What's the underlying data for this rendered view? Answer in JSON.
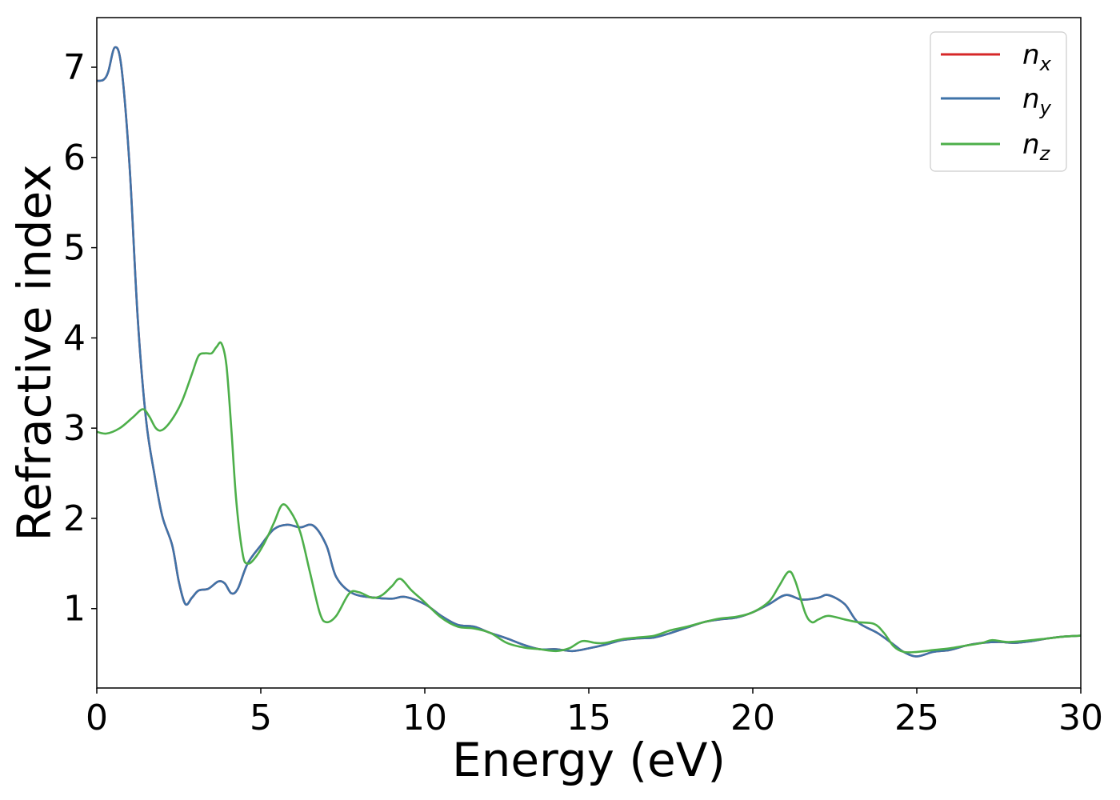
{
  "chart_data": {
    "type": "line",
    "xlabel": "Energy (eV)",
    "ylabel": "Refractive index",
    "xlim": [
      0,
      30
    ],
    "ylim": [
      0.12,
      7.55
    ],
    "x_ticks": [
      0,
      5,
      10,
      15,
      20,
      25,
      30
    ],
    "y_ticks": [
      1,
      2,
      3,
      4,
      5,
      6,
      7
    ],
    "grid": false,
    "legend_position": "top-right",
    "series": [
      {
        "name": "n_x",
        "legend_main": "n",
        "legend_sub": "x",
        "color": "#d62728",
        "points": [
          [
            0,
            6.85
          ],
          [
            0.2,
            6.86
          ],
          [
            0.35,
            6.95
          ],
          [
            0.55,
            7.22
          ],
          [
            0.75,
            7.0
          ],
          [
            1.0,
            5.9
          ],
          [
            1.25,
            4.2
          ],
          [
            1.5,
            3.1
          ],
          [
            1.75,
            2.5
          ],
          [
            2.0,
            2.02
          ],
          [
            2.3,
            1.7
          ],
          [
            2.5,
            1.3
          ],
          [
            2.7,
            1.05
          ],
          [
            2.9,
            1.12
          ],
          [
            3.1,
            1.2
          ],
          [
            3.4,
            1.22
          ],
          [
            3.7,
            1.3
          ],
          [
            3.9,
            1.28
          ],
          [
            4.1,
            1.17
          ],
          [
            4.3,
            1.22
          ],
          [
            4.6,
            1.5
          ],
          [
            5.0,
            1.7
          ],
          [
            5.4,
            1.88
          ],
          [
            5.8,
            1.93
          ],
          [
            6.2,
            1.9
          ],
          [
            6.6,
            1.92
          ],
          [
            7.0,
            1.7
          ],
          [
            7.3,
            1.35
          ],
          [
            7.8,
            1.17
          ],
          [
            8.5,
            1.12
          ],
          [
            9.0,
            1.11
          ],
          [
            9.4,
            1.13
          ],
          [
            10.0,
            1.05
          ],
          [
            10.5,
            0.92
          ],
          [
            11.0,
            0.82
          ],
          [
            11.5,
            0.8
          ],
          [
            12.0,
            0.73
          ],
          [
            12.5,
            0.67
          ],
          [
            13.0,
            0.6
          ],
          [
            13.5,
            0.55
          ],
          [
            14.0,
            0.55
          ],
          [
            14.5,
            0.53
          ],
          [
            15.0,
            0.56
          ],
          [
            15.5,
            0.6
          ],
          [
            16.0,
            0.65
          ],
          [
            16.5,
            0.67
          ],
          [
            17.0,
            0.68
          ],
          [
            17.5,
            0.73
          ],
          [
            18.0,
            0.79
          ],
          [
            18.5,
            0.85
          ],
          [
            19.0,
            0.88
          ],
          [
            19.5,
            0.9
          ],
          [
            20.0,
            0.96
          ],
          [
            20.5,
            1.05
          ],
          [
            21.0,
            1.15
          ],
          [
            21.5,
            1.1
          ],
          [
            22.0,
            1.12
          ],
          [
            22.3,
            1.15
          ],
          [
            22.8,
            1.05
          ],
          [
            23.2,
            0.85
          ],
          [
            23.8,
            0.73
          ],
          [
            24.3,
            0.6
          ],
          [
            24.6,
            0.52
          ],
          [
            25.0,
            0.47
          ],
          [
            25.5,
            0.52
          ],
          [
            26.0,
            0.54
          ],
          [
            26.5,
            0.59
          ],
          [
            27.0,
            0.62
          ],
          [
            27.5,
            0.63
          ],
          [
            28.0,
            0.62
          ],
          [
            28.5,
            0.64
          ],
          [
            29.0,
            0.67
          ],
          [
            29.5,
            0.69
          ],
          [
            30.0,
            0.7
          ]
        ]
      },
      {
        "name": "n_y",
        "legend_main": "n",
        "legend_sub": "y",
        "color": "#3f73a8",
        "points": [
          [
            0,
            6.85
          ],
          [
            0.2,
            6.86
          ],
          [
            0.35,
            6.95
          ],
          [
            0.55,
            7.22
          ],
          [
            0.75,
            7.0
          ],
          [
            1.0,
            5.9
          ],
          [
            1.25,
            4.2
          ],
          [
            1.5,
            3.1
          ],
          [
            1.75,
            2.5
          ],
          [
            2.0,
            2.02
          ],
          [
            2.3,
            1.7
          ],
          [
            2.5,
            1.3
          ],
          [
            2.7,
            1.05
          ],
          [
            2.9,
            1.12
          ],
          [
            3.1,
            1.2
          ],
          [
            3.4,
            1.22
          ],
          [
            3.7,
            1.3
          ],
          [
            3.9,
            1.28
          ],
          [
            4.1,
            1.17
          ],
          [
            4.3,
            1.22
          ],
          [
            4.6,
            1.5
          ],
          [
            5.0,
            1.7
          ],
          [
            5.4,
            1.88
          ],
          [
            5.8,
            1.93
          ],
          [
            6.2,
            1.9
          ],
          [
            6.6,
            1.92
          ],
          [
            7.0,
            1.7
          ],
          [
            7.3,
            1.35
          ],
          [
            7.8,
            1.17
          ],
          [
            8.5,
            1.12
          ],
          [
            9.0,
            1.11
          ],
          [
            9.4,
            1.13
          ],
          [
            10.0,
            1.05
          ],
          [
            10.5,
            0.92
          ],
          [
            11.0,
            0.82
          ],
          [
            11.5,
            0.8
          ],
          [
            12.0,
            0.73
          ],
          [
            12.5,
            0.67
          ],
          [
            13.0,
            0.6
          ],
          [
            13.5,
            0.55
          ],
          [
            14.0,
            0.55
          ],
          [
            14.5,
            0.53
          ],
          [
            15.0,
            0.56
          ],
          [
            15.5,
            0.6
          ],
          [
            16.0,
            0.65
          ],
          [
            16.5,
            0.67
          ],
          [
            17.0,
            0.68
          ],
          [
            17.5,
            0.73
          ],
          [
            18.0,
            0.79
          ],
          [
            18.5,
            0.85
          ],
          [
            19.0,
            0.88
          ],
          [
            19.5,
            0.9
          ],
          [
            20.0,
            0.96
          ],
          [
            20.5,
            1.05
          ],
          [
            21.0,
            1.15
          ],
          [
            21.5,
            1.1
          ],
          [
            22.0,
            1.12
          ],
          [
            22.3,
            1.15
          ],
          [
            22.8,
            1.05
          ],
          [
            23.2,
            0.85
          ],
          [
            23.8,
            0.73
          ],
          [
            24.3,
            0.6
          ],
          [
            24.6,
            0.52
          ],
          [
            25.0,
            0.47
          ],
          [
            25.5,
            0.52
          ],
          [
            26.0,
            0.54
          ],
          [
            26.5,
            0.59
          ],
          [
            27.0,
            0.62
          ],
          [
            27.5,
            0.63
          ],
          [
            28.0,
            0.62
          ],
          [
            28.5,
            0.64
          ],
          [
            29.0,
            0.67
          ],
          [
            29.5,
            0.69
          ],
          [
            30.0,
            0.7
          ]
        ]
      },
      {
        "name": "n_z",
        "legend_main": "n",
        "legend_sub": "z",
        "color": "#4daf4a",
        "points": [
          [
            0,
            2.96
          ],
          [
            0.3,
            2.94
          ],
          [
            0.7,
            3.0
          ],
          [
            1.1,
            3.12
          ],
          [
            1.4,
            3.21
          ],
          [
            1.6,
            3.13
          ],
          [
            1.8,
            3.0
          ],
          [
            2.0,
            2.98
          ],
          [
            2.3,
            3.1
          ],
          [
            2.6,
            3.3
          ],
          [
            2.9,
            3.6
          ],
          [
            3.1,
            3.8
          ],
          [
            3.3,
            3.83
          ],
          [
            3.5,
            3.83
          ],
          [
            3.65,
            3.9
          ],
          [
            3.8,
            3.94
          ],
          [
            3.95,
            3.7
          ],
          [
            4.1,
            3.0
          ],
          [
            4.25,
            2.2
          ],
          [
            4.45,
            1.6
          ],
          [
            4.6,
            1.5
          ],
          [
            4.8,
            1.55
          ],
          [
            5.1,
            1.72
          ],
          [
            5.4,
            1.95
          ],
          [
            5.65,
            2.15
          ],
          [
            5.9,
            2.08
          ],
          [
            6.2,
            1.85
          ],
          [
            6.5,
            1.4
          ],
          [
            6.8,
            0.95
          ],
          [
            7.0,
            0.85
          ],
          [
            7.3,
            0.92
          ],
          [
            7.7,
            1.17
          ],
          [
            8.0,
            1.18
          ],
          [
            8.4,
            1.12
          ],
          [
            8.7,
            1.15
          ],
          [
            9.0,
            1.25
          ],
          [
            9.25,
            1.33
          ],
          [
            9.6,
            1.2
          ],
          [
            10.0,
            1.07
          ],
          [
            10.5,
            0.9
          ],
          [
            11.0,
            0.8
          ],
          [
            11.5,
            0.78
          ],
          [
            12.0,
            0.73
          ],
          [
            12.5,
            0.62
          ],
          [
            13.0,
            0.57
          ],
          [
            13.5,
            0.55
          ],
          [
            14.0,
            0.53
          ],
          [
            14.4,
            0.56
          ],
          [
            14.8,
            0.64
          ],
          [
            15.2,
            0.62
          ],
          [
            15.5,
            0.62
          ],
          [
            16.0,
            0.66
          ],
          [
            16.5,
            0.68
          ],
          [
            17.0,
            0.7
          ],
          [
            17.5,
            0.76
          ],
          [
            18.0,
            0.8
          ],
          [
            18.5,
            0.85
          ],
          [
            19.0,
            0.89
          ],
          [
            19.5,
            0.91
          ],
          [
            20.0,
            0.96
          ],
          [
            20.5,
            1.08
          ],
          [
            20.8,
            1.25
          ],
          [
            21.1,
            1.41
          ],
          [
            21.3,
            1.3
          ],
          [
            21.6,
            0.95
          ],
          [
            21.8,
            0.85
          ],
          [
            22.0,
            0.88
          ],
          [
            22.3,
            0.92
          ],
          [
            22.8,
            0.88
          ],
          [
            23.2,
            0.85
          ],
          [
            23.7,
            0.83
          ],
          [
            24.0,
            0.73
          ],
          [
            24.3,
            0.58
          ],
          [
            24.6,
            0.52
          ],
          [
            25.0,
            0.52
          ],
          [
            25.5,
            0.54
          ],
          [
            26.0,
            0.56
          ],
          [
            26.5,
            0.59
          ],
          [
            27.0,
            0.62
          ],
          [
            27.3,
            0.65
          ],
          [
            27.8,
            0.63
          ],
          [
            28.5,
            0.65
          ],
          [
            29.0,
            0.67
          ],
          [
            29.5,
            0.69
          ],
          [
            30.0,
            0.7
          ]
        ]
      }
    ]
  }
}
